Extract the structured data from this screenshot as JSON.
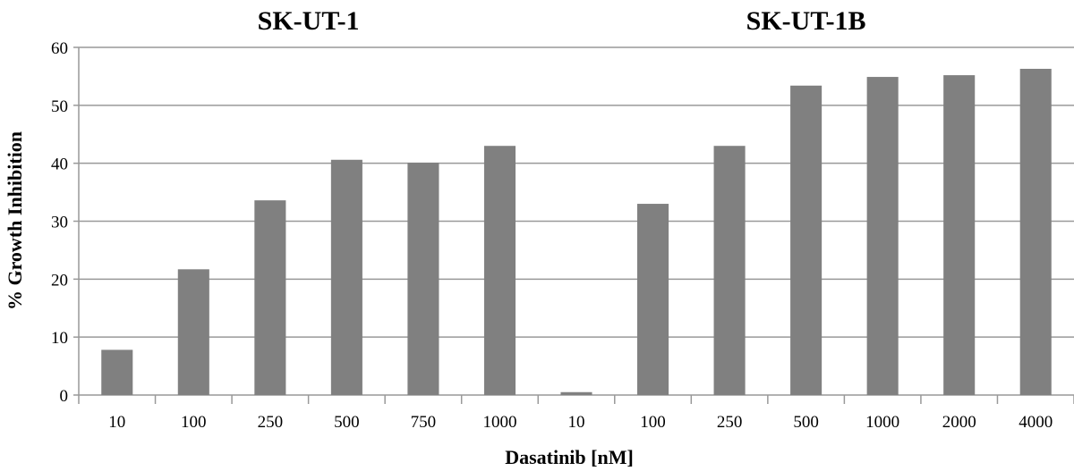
{
  "chart_data": {
    "type": "bar",
    "groups": [
      {
        "title": "SK-UT-1",
        "categories": [
          "10",
          "100",
          "250",
          "500",
          "750",
          "1000"
        ],
        "values": [
          7.8,
          21.7,
          33.6,
          40.6,
          40.1,
          43.0
        ]
      },
      {
        "title": "SK-UT-1B",
        "categories": [
          "10",
          "100",
          "250",
          "500",
          "1000",
          "2000",
          "4000"
        ],
        "values": [
          0.5,
          33.0,
          43.0,
          53.4,
          54.9,
          55.2,
          56.3
        ]
      }
    ],
    "xlabel": "Dasatinib [nM]",
    "ylabel": "% Growth Inhibition",
    "ylim": [
      0,
      60
    ],
    "yticks": [
      0,
      10,
      20,
      30,
      40,
      50,
      60
    ],
    "grid": true,
    "bar_color": "#808080",
    "grid_color": "#999999"
  }
}
